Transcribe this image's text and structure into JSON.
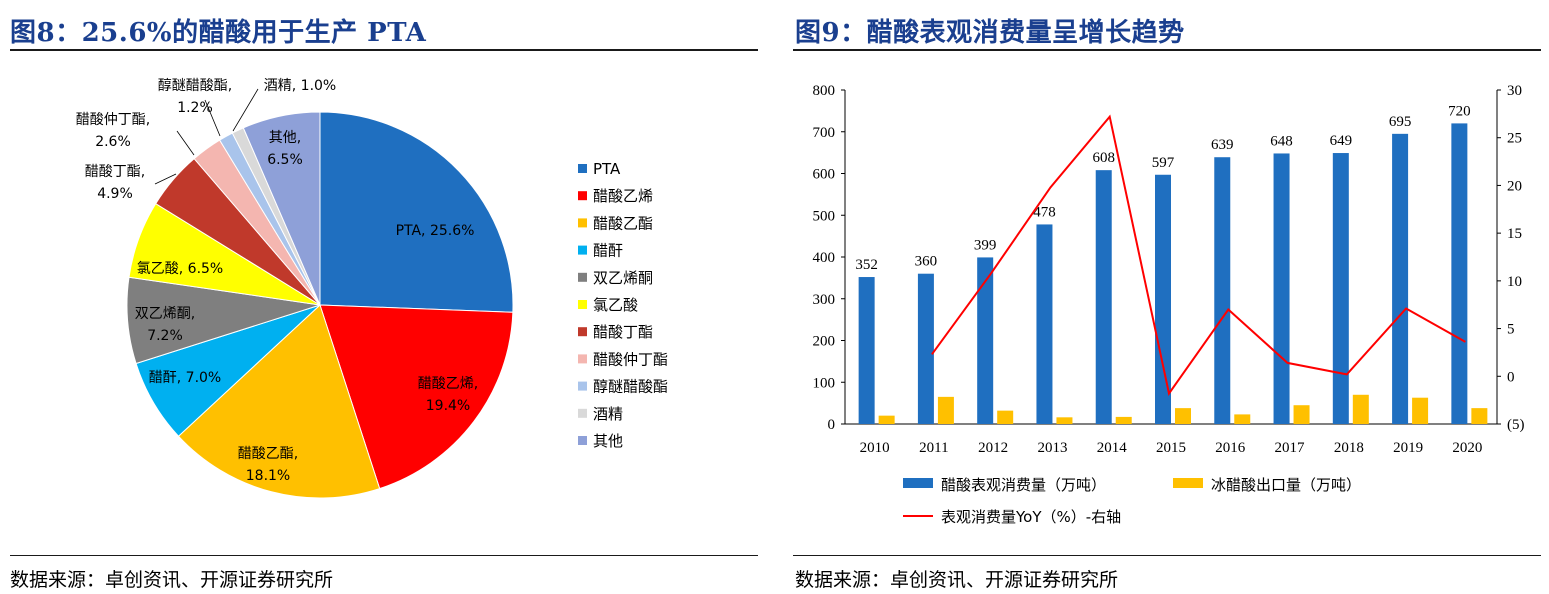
{
  "left": {
    "title": "图8：25.6%的醋酸用于生产 PTA",
    "source": "数据来源：卓创资讯、开源证券研究所"
  },
  "right": {
    "title": "图9：醋酸表观消费量呈增长趋势",
    "source": "数据来源：卓创资讯、开源证券研究所"
  },
  "chart_data": [
    {
      "type": "pie",
      "slices": [
        {
          "name": "PTA",
          "value": 25.6,
          "color": "#1f6fc0",
          "label_lines": [
            "PTA, 25.6%"
          ]
        },
        {
          "name": "醋酸乙烯",
          "value": 19.4,
          "color": "#ff0000",
          "label_lines": [
            "醋酸乙烯,",
            "19.4%"
          ]
        },
        {
          "name": "醋酸乙酯",
          "value": 18.1,
          "color": "#ffc000",
          "label_lines": [
            "醋酸乙酯,",
            "18.1%"
          ]
        },
        {
          "name": "醋酐",
          "value": 7.0,
          "color": "#00b0f0",
          "label_lines": [
            "醋酐, 7.0%"
          ]
        },
        {
          "name": "双乙烯酮",
          "value": 7.2,
          "color": "#7f7f7f",
          "label_lines": [
            "双乙烯酮,",
            "7.2%"
          ]
        },
        {
          "name": "氯乙酸",
          "value": 6.5,
          "color": "#ffff00",
          "label_lines": [
            "氯乙酸, 6.5%"
          ]
        },
        {
          "name": "醋酸丁酯",
          "value": 4.9,
          "color": "#c0392b",
          "label_lines": [
            "醋酸丁酯,",
            "4.9%"
          ]
        },
        {
          "name": "醋酸仲丁酯",
          "value": 2.6,
          "color": "#f4b6b0",
          "label_lines": [
            "醋酸仲丁酯,",
            "2.6%"
          ]
        },
        {
          "name": "醇醚醋酸酯",
          "value": 1.2,
          "color": "#a9c4eb",
          "label_lines": [
            "醇醚醋酸酯,",
            "1.2%"
          ]
        },
        {
          "name": "酒精",
          "value": 1.0,
          "color": "#d9d9d9",
          "label_lines": [
            "酒精, 1.0%"
          ]
        },
        {
          "name": "其他",
          "value": 6.5,
          "color": "#8ea0d8",
          "label_lines": [
            "其他,",
            "6.5%"
          ]
        }
      ],
      "legend_position": "right"
    },
    {
      "type": "bar",
      "categories": [
        "2010",
        "2011",
        "2012",
        "2013",
        "2014",
        "2015",
        "2016",
        "2017",
        "2018",
        "2019",
        "2020"
      ],
      "series": [
        {
          "name": "醋酸表观消费量（万吨）",
          "kind": "bar",
          "axis": "left",
          "color": "#1f6fc0",
          "values": [
            352,
            360,
            399,
            478,
            608,
            597,
            639,
            648,
            649,
            695,
            720
          ],
          "data_labels": true
        },
        {
          "name": "冰醋酸出口量（万吨）",
          "kind": "bar",
          "axis": "left",
          "color": "#ffc000",
          "values": [
            20,
            65,
            32,
            16,
            17,
            38,
            23,
            45,
            70,
            63,
            38
          ],
          "data_labels": false
        },
        {
          "name": "表观消费量YoY（%）-右轴",
          "kind": "line",
          "axis": "right",
          "color": "#ff0000",
          "values": [
            null,
            2.3,
            10.8,
            19.8,
            27.2,
            -1.8,
            7.0,
            1.4,
            0.2,
            7.1,
            3.6
          ],
          "data_labels": false
        }
      ],
      "y_left": {
        "min": 0,
        "max": 800,
        "ticks": [
          "0",
          "100",
          "200",
          "300",
          "400",
          "500",
          "600",
          "700",
          "800"
        ]
      },
      "y_right": {
        "min": -5,
        "max": 30,
        "ticks": [
          "(5)",
          "0",
          "5",
          "10",
          "15",
          "20",
          "25",
          "30"
        ],
        "negative_color": "#ff0000"
      },
      "grid": false,
      "legend_position": "bottom"
    }
  ]
}
